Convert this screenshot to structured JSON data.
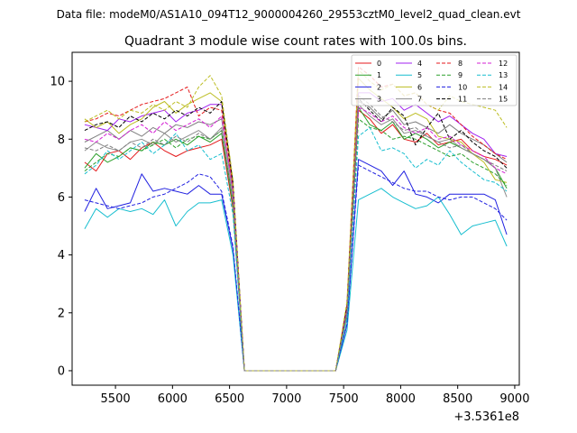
{
  "figure": {
    "suptitle": "Data file: modeM0/AS1A10_094T12_9000004260_29553cztM0_level2_quad_clean.evt",
    "title": "Quadrant 3 module wise count rates with 100.0s bins.",
    "x_offset_label": "+3.5361e8"
  },
  "chart_data": {
    "type": "line",
    "title": "Quadrant 3 module wise count rates with 100.0s bins.",
    "xlabel": "",
    "ylabel": "",
    "x_offset": 353610000,
    "xlim": [
      5120,
      9040
    ],
    "ylim": [
      -0.5,
      11.0
    ],
    "xticks": [
      5500,
      6000,
      6500,
      7000,
      7500,
      8000,
      8500,
      9000
    ],
    "yticks": [
      0,
      2,
      4,
      6,
      8,
      10
    ],
    "xtick_labels": [
      "5500",
      "6000",
      "6500",
      "7000",
      "7500",
      "8000",
      "8500",
      "9000"
    ],
    "ytick_labels": [
      "0",
      "2",
      "4",
      "6",
      "8",
      "10"
    ],
    "grid": false,
    "legend_position": "top-right",
    "x": [
      5230,
      5330,
      5430,
      5530,
      5630,
      5730,
      5830,
      5930,
      6030,
      6130,
      6230,
      6330,
      6430,
      6530,
      6630,
      6730,
      6830,
      6930,
      7030,
      7130,
      7230,
      7330,
      7430,
      7530,
      7630,
      7730,
      7830,
      7930,
      8030,
      8130,
      8230,
      8330,
      8430,
      8530,
      8630,
      8730,
      8830,
      8930
    ],
    "series": [
      {
        "name": "0",
        "color": "#e41a1c",
        "dashed": false,
        "values": [
          7.2,
          6.9,
          7.5,
          7.6,
          7.3,
          7.7,
          7.9,
          7.6,
          7.4,
          7.6,
          7.7,
          7.8,
          8.0,
          5.6,
          0.0,
          0.0,
          0.0,
          0.0,
          0.0,
          0.0,
          0.0,
          0.0,
          0.0,
          2.0,
          9.0,
          8.7,
          8.2,
          8.5,
          8.0,
          7.9,
          8.2,
          7.8,
          7.9,
          8.0,
          7.6,
          7.4,
          7.3,
          7.1
        ]
      },
      {
        "name": "1",
        "color": "#2ca02c",
        "dashed": false,
        "values": [
          7.0,
          7.5,
          7.2,
          7.4,
          7.7,
          7.6,
          7.9,
          7.8,
          8.0,
          7.8,
          8.1,
          7.9,
          8.2,
          5.7,
          0.0,
          0.0,
          0.0,
          0.0,
          0.0,
          0.0,
          0.0,
          0.0,
          0.0,
          1.9,
          9.1,
          8.5,
          8.3,
          8.6,
          8.0,
          8.2,
          8.0,
          7.7,
          7.9,
          7.7,
          7.5,
          7.3,
          7.0,
          6.3
        ]
      },
      {
        "name": "2",
        "color": "#1f1fe0",
        "dashed": false,
        "values": [
          5.5,
          6.3,
          5.6,
          5.7,
          5.8,
          6.8,
          6.2,
          6.3,
          6.2,
          6.1,
          6.4,
          6.1,
          6.1,
          4.2,
          0.0,
          0.0,
          0.0,
          0.0,
          0.0,
          0.0,
          0.0,
          0.0,
          0.0,
          1.6,
          7.3,
          7.1,
          6.9,
          6.4,
          6.9,
          6.1,
          6.0,
          5.8,
          6.1,
          6.1,
          6.1,
          6.1,
          5.9,
          4.7
        ]
      },
      {
        "name": "3",
        "color": "#7f7f7f",
        "dashed": false,
        "values": [
          7.9,
          8.1,
          8.3,
          8.0,
          8.3,
          8.1,
          8.4,
          8.2,
          8.5,
          8.4,
          8.6,
          8.5,
          8.7,
          6.1,
          0.0,
          0.0,
          0.0,
          0.0,
          0.0,
          0.0,
          0.0,
          0.0,
          0.0,
          2.1,
          9.3,
          9.1,
          8.7,
          9.0,
          8.5,
          8.6,
          8.4,
          8.2,
          8.5,
          8.2,
          8.0,
          7.8,
          7.5,
          7.2
        ]
      },
      {
        "name": "4",
        "color": "#a020f0",
        "dashed": false,
        "values": [
          8.5,
          8.4,
          8.3,
          8.7,
          8.6,
          8.8,
          8.9,
          9.0,
          8.6,
          8.9,
          9.0,
          9.2,
          9.2,
          6.5,
          0.0,
          0.0,
          0.0,
          0.0,
          0.0,
          0.0,
          0.0,
          0.0,
          0.0,
          2.2,
          9.6,
          9.6,
          9.3,
          9.4,
          9.0,
          9.2,
          8.9,
          8.6,
          8.8,
          8.5,
          8.2,
          8.0,
          7.5,
          7.4
        ]
      },
      {
        "name": "5",
        "color": "#17becf",
        "dashed": false,
        "values": [
          4.9,
          5.6,
          5.3,
          5.6,
          5.5,
          5.6,
          5.4,
          5.9,
          5.0,
          5.5,
          5.8,
          5.8,
          5.9,
          4.0,
          0.0,
          0.0,
          0.0,
          0.0,
          0.0,
          0.0,
          0.0,
          0.0,
          0.0,
          1.4,
          5.9,
          6.1,
          6.3,
          6.0,
          5.8,
          5.6,
          5.7,
          6.0,
          5.4,
          4.7,
          5.0,
          5.1,
          5.2,
          4.3
        ]
      },
      {
        "name": "6",
        "color": "#bcbd22",
        "dashed": false,
        "values": [
          8.7,
          8.4,
          8.6,
          8.2,
          8.5,
          8.7,
          9.1,
          9.3,
          8.9,
          9.2,
          9.4,
          9.6,
          9.3,
          6.3,
          0.0,
          0.0,
          0.0,
          0.0,
          0.0,
          0.0,
          0.0,
          0.0,
          0.0,
          2.3,
          10.1,
          9.7,
          9.4,
          9.1,
          8.7,
          8.9,
          8.7,
          8.1,
          8.0,
          7.9,
          7.5,
          7.2,
          6.6,
          6.5
        ]
      },
      {
        "name": "7",
        "color": "#8c8c8c",
        "dashed": false,
        "values": [
          7.6,
          7.9,
          7.7,
          7.6,
          7.9,
          8.0,
          7.8,
          8.2,
          7.9,
          8.1,
          8.3,
          8.0,
          8.4,
          5.9,
          0.0,
          0.0,
          0.0,
          0.0,
          0.0,
          0.0,
          0.0,
          0.0,
          0.0,
          2.0,
          9.2,
          8.8,
          8.5,
          8.7,
          8.2,
          8.3,
          8.1,
          7.9,
          8.0,
          7.7,
          7.5,
          7.3,
          7.0,
          6.0
        ]
      },
      {
        "name": "8",
        "color": "#e41a1c",
        "dashed": true,
        "values": [
          8.6,
          8.7,
          8.9,
          8.8,
          9.0,
          9.2,
          9.3,
          9.4,
          9.6,
          9.8,
          8.8,
          9.1,
          9.0,
          6.4,
          0.0,
          0.0,
          0.0,
          0.0,
          0.0,
          0.0,
          0.0,
          0.0,
          0.0,
          2.3,
          10.5,
          10.2,
          9.8,
          9.9,
          9.5,
          9.6,
          9.2,
          9.0,
          8.9,
          8.5,
          8.1,
          7.8,
          7.5,
          7.3
        ]
      },
      {
        "name": "9",
        "color": "#2ca02c",
        "dashed": true,
        "values": [
          6.9,
          7.2,
          7.5,
          7.4,
          7.7,
          7.6,
          7.8,
          8.0,
          7.7,
          8.0,
          8.1,
          8.0,
          8.3,
          5.8,
          0.0,
          0.0,
          0.0,
          0.0,
          0.0,
          0.0,
          0.0,
          0.0,
          0.0,
          1.9,
          8.7,
          8.4,
          8.3,
          8.0,
          8.1,
          8.0,
          7.8,
          7.6,
          7.4,
          7.5,
          7.2,
          7.0,
          6.8,
          6.4
        ]
      },
      {
        "name": "10",
        "color": "#1f1fe0",
        "dashed": true,
        "values": [
          5.9,
          5.8,
          5.7,
          5.6,
          5.7,
          5.8,
          6.0,
          6.1,
          6.3,
          6.5,
          6.8,
          6.7,
          6.2,
          4.3,
          0.0,
          0.0,
          0.0,
          0.0,
          0.0,
          0.0,
          0.0,
          0.0,
          0.0,
          1.6,
          7.1,
          6.9,
          6.7,
          6.5,
          6.3,
          6.2,
          6.2,
          6.0,
          5.9,
          6.0,
          6.0,
          5.8,
          5.6,
          5.2
        ]
      },
      {
        "name": "11",
        "color": "#000000",
        "dashed": true,
        "values": [
          8.3,
          8.5,
          8.6,
          8.4,
          8.8,
          8.6,
          8.9,
          8.7,
          9.0,
          8.8,
          9.1,
          8.9,
          9.3,
          6.5,
          0.0,
          0.0,
          0.0,
          0.0,
          0.0,
          0.0,
          0.0,
          0.0,
          0.0,
          2.2,
          9.4,
          9.0,
          8.6,
          9.1,
          8.8,
          7.8,
          8.4,
          8.9,
          8.0,
          8.3,
          7.9,
          7.6,
          7.4,
          7.0
        ]
      },
      {
        "name": "12",
        "color": "#d41fd4",
        "dashed": true,
        "values": [
          8.0,
          7.9,
          8.2,
          8.0,
          8.3,
          8.5,
          8.2,
          8.6,
          8.3,
          8.5,
          8.7,
          8.4,
          8.8,
          6.2,
          0.0,
          0.0,
          0.0,
          0.0,
          0.0,
          0.0,
          0.0,
          0.0,
          0.0,
          2.1,
          9.1,
          8.9,
          8.6,
          8.8,
          8.4,
          8.2,
          8.4,
          8.0,
          8.1,
          7.8,
          7.6,
          7.4,
          7.0,
          6.8
        ]
      },
      {
        "name": "13",
        "color": "#17becf",
        "dashed": true,
        "values": [
          6.8,
          7.1,
          7.6,
          7.3,
          7.6,
          7.9,
          7.5,
          7.8,
          8.2,
          7.6,
          7.8,
          7.3,
          7.5,
          5.4,
          0.0,
          0.0,
          0.0,
          0.0,
          0.0,
          0.0,
          0.0,
          0.0,
          0.0,
          1.8,
          8.1,
          8.4,
          7.6,
          7.7,
          7.5,
          7.0,
          7.3,
          7.1,
          7.6,
          7.2,
          6.9,
          6.6,
          6.5,
          6.2
        ]
      },
      {
        "name": "14",
        "color": "#bcbd22",
        "dashed": true,
        "values": [
          8.6,
          8.8,
          9.0,
          8.7,
          9.0,
          8.9,
          9.2,
          9.0,
          9.3,
          9.1,
          9.8,
          10.2,
          9.5,
          6.6,
          0.0,
          0.0,
          0.0,
          0.0,
          0.0,
          0.0,
          0.0,
          0.0,
          0.0,
          2.4,
          10.4,
          10.0,
          9.7,
          9.9,
          9.5,
          9.6,
          9.2,
          9.0,
          9.5,
          9.3,
          9.2,
          9.1,
          9.0,
          8.4
        ]
      },
      {
        "name": "15",
        "color": "#7f7f7f",
        "dashed": true,
        "values": [
          7.7,
          7.6,
          7.8,
          7.6,
          7.9,
          7.7,
          8.0,
          7.8,
          8.1,
          7.9,
          8.2,
          8.0,
          8.3,
          5.8,
          0.0,
          0.0,
          0.0,
          0.0,
          0.0,
          0.0,
          0.0,
          0.0,
          0.0,
          2.0,
          9.5,
          9.2,
          8.8,
          8.6,
          8.3,
          8.4,
          8.1,
          7.9,
          7.7,
          7.8,
          7.5,
          7.3,
          7.1,
          6.9
        ]
      }
    ]
  }
}
